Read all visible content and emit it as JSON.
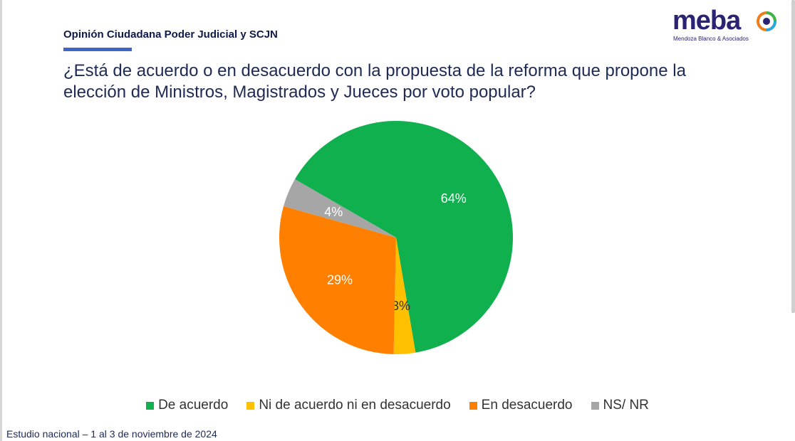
{
  "header": {
    "section_title": "Opinión Ciudadana Poder Judicial y SCJN",
    "question": "¿Está de acuerdo o en desacuerdo con la propuesta de la reforma que propone la elección de Ministros, Magistrados y Jueces por voto popular?"
  },
  "logo": {
    "word": "meba",
    "subtitle": "Mendoza Blanco & Asociados"
  },
  "chart_data": {
    "type": "pie",
    "title": "",
    "slices": [
      {
        "label": "De acuerdo",
        "value": 64,
        "value_label": "64%",
        "color": "#10b04f",
        "label_color": "#ffffff"
      },
      {
        "label": "Ni de acuerdo ni en desacuerdo",
        "value": 3,
        "value_label": "3%",
        "color": "#ffc000",
        "label_color": "#333333"
      },
      {
        "label": "En desacuerdo",
        "value": 29,
        "value_label": "29%",
        "color": "#ff8000",
        "label_color": "#ffffff"
      },
      {
        "label": "NS/ NR",
        "value": 4,
        "value_label": "4%",
        "color": "#a6a6a6",
        "label_color": "#ffffff"
      }
    ],
    "legend_position": "bottom"
  },
  "footer": {
    "note": "Estudio nacional – 1 al 3 de noviembre de 2024"
  }
}
